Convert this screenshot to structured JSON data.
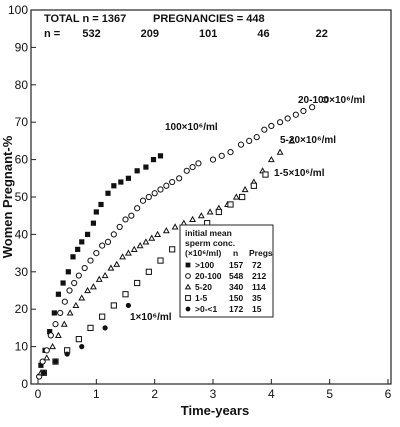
{
  "chart_data": {
    "type": "scatter",
    "title": "",
    "xlabel": "Time-years",
    "ylabel": "Women Pregnant-%",
    "xlim": [
      0,
      6
    ],
    "ylim": [
      0,
      100
    ],
    "x_ticks": [
      "0",
      "1",
      "2",
      "3",
      "4",
      "5",
      "6"
    ],
    "y_ticks": [
      "0",
      "10",
      "20",
      "30",
      "40",
      "50",
      "60",
      "70",
      "80",
      "90",
      "100"
    ],
    "grid": false,
    "header": {
      "total": "TOTAL n = 1367",
      "pregnancies": "PREGNANCIES = 448"
    },
    "n_at_risk": {
      "label": "n =",
      "values": [
        {
          "x": 1,
          "label": "532"
        },
        {
          "x": 2,
          "label": "209"
        },
        {
          "x": 3,
          "label": "101"
        },
        {
          "x": 4,
          "label": "46"
        },
        {
          "x": 5,
          "label": "22"
        }
      ]
    },
    "series": [
      {
        "name": ">100",
        "label": "100×10⁶/ml",
        "marker": "filled-square",
        "x": [
          0.05,
          0.12,
          0.2,
          0.28,
          0.35,
          0.43,
          0.52,
          0.6,
          0.68,
          0.75,
          0.85,
          0.95,
          1.0,
          1.08,
          1.2,
          1.3,
          1.42,
          1.55,
          1.7,
          1.85,
          1.98,
          2.1
        ],
        "y": [
          5,
          9,
          14,
          19,
          24,
          27,
          30,
          34,
          36,
          38,
          40,
          43,
          46,
          48,
          51,
          53,
          54,
          55,
          57,
          58,
          60,
          61
        ]
      },
      {
        "name": "20-100",
        "label": "20-100×10⁶/ml",
        "marker": "open-circle",
        "x": [
          0.02,
          0.08,
          0.15,
          0.22,
          0.3,
          0.38,
          0.46,
          0.54,
          0.62,
          0.7,
          0.8,
          0.9,
          1.0,
          1.1,
          1.2,
          1.3,
          1.4,
          1.5,
          1.6,
          1.7,
          1.8,
          1.9,
          2.0,
          2.1,
          2.2,
          2.3,
          2.42,
          2.55,
          2.65,
          2.75,
          3.0,
          3.15,
          3.3,
          3.48,
          3.62,
          3.75,
          3.88,
          4.0,
          4.15,
          4.28,
          4.42,
          4.55,
          4.7,
          4.92
        ],
        "y": [
          2,
          6,
          9,
          13,
          16,
          19,
          22,
          25,
          27,
          29,
          31,
          33,
          35,
          37,
          38,
          40,
          42,
          44,
          45,
          47,
          49,
          50,
          51,
          52,
          53,
          54,
          55,
          57,
          58,
          59,
          60,
          61,
          62,
          64,
          65,
          66,
          68,
          69,
          70,
          71,
          72,
          73,
          74,
          76
        ]
      },
      {
        "name": "5-20",
        "label": "5-20×10⁶/ml",
        "marker": "open-triangle",
        "x": [
          0.05,
          0.15,
          0.25,
          0.35,
          0.45,
          0.55,
          0.65,
          0.75,
          0.85,
          0.95,
          1.05,
          1.15,
          1.25,
          1.35,
          1.45,
          1.55,
          1.65,
          1.75,
          1.85,
          1.95,
          2.05,
          2.2,
          2.35,
          2.5,
          2.65,
          2.8,
          2.95,
          3.1,
          3.25,
          3.4,
          3.55,
          3.7,
          3.85,
          4.0,
          4.15,
          4.35
        ],
        "y": [
          3,
          7,
          10,
          13,
          16,
          19,
          21,
          23,
          25,
          26,
          28,
          29,
          31,
          32,
          34,
          35,
          36,
          37,
          38,
          39,
          40,
          41,
          42,
          43,
          44,
          45,
          46,
          47,
          48,
          50,
          52,
          54,
          57,
          60,
          62,
          65
        ]
      },
      {
        "name": "1-5",
        "label": "1-5×10⁶/ml",
        "marker": "open-square",
        "x": [
          0.1,
          0.3,
          0.5,
          0.7,
          0.9,
          1.1,
          1.3,
          1.5,
          1.7,
          1.9,
          2.1,
          2.3,
          2.5,
          2.7,
          2.9,
          3.1,
          3.3,
          3.5,
          3.7,
          3.9
        ],
        "y": [
          3,
          6,
          9,
          12,
          15,
          18,
          21,
          24,
          27,
          30,
          33,
          36,
          38,
          41,
          43,
          46,
          48,
          50,
          53,
          56
        ]
      },
      {
        "name": ">0-<1",
        "label": "1×10⁶/ml",
        "marker": "filled-circle",
        "x": [
          0.1,
          0.3,
          0.5,
          0.75,
          1.15,
          1.55
        ],
        "y": [
          3,
          6,
          8,
          10,
          15,
          21
        ]
      }
    ],
    "legend": {
      "position": "bottom-right",
      "title_lines": [
        "initial mean",
        "sperm conc.",
        "(×10⁶/ml)"
      ],
      "columns": [
        "n",
        "Pregs"
      ],
      "rows": [
        {
          "marker": "filled-square",
          "range": ">100",
          "n": "157",
          "pregs": "72"
        },
        {
          "marker": "open-circle",
          "range": "20-100",
          "n": "548",
          "pregs": "212"
        },
        {
          "marker": "open-triangle",
          "range": "5-20",
          "n": "340",
          "pregs": "114"
        },
        {
          "marker": "open-square",
          "range": "1-5",
          "n": "150",
          "pregs": "35"
        },
        {
          "marker": "filled-circle",
          "range": ">0-<1",
          "n": "172",
          "pregs": "15"
        }
      ]
    }
  }
}
